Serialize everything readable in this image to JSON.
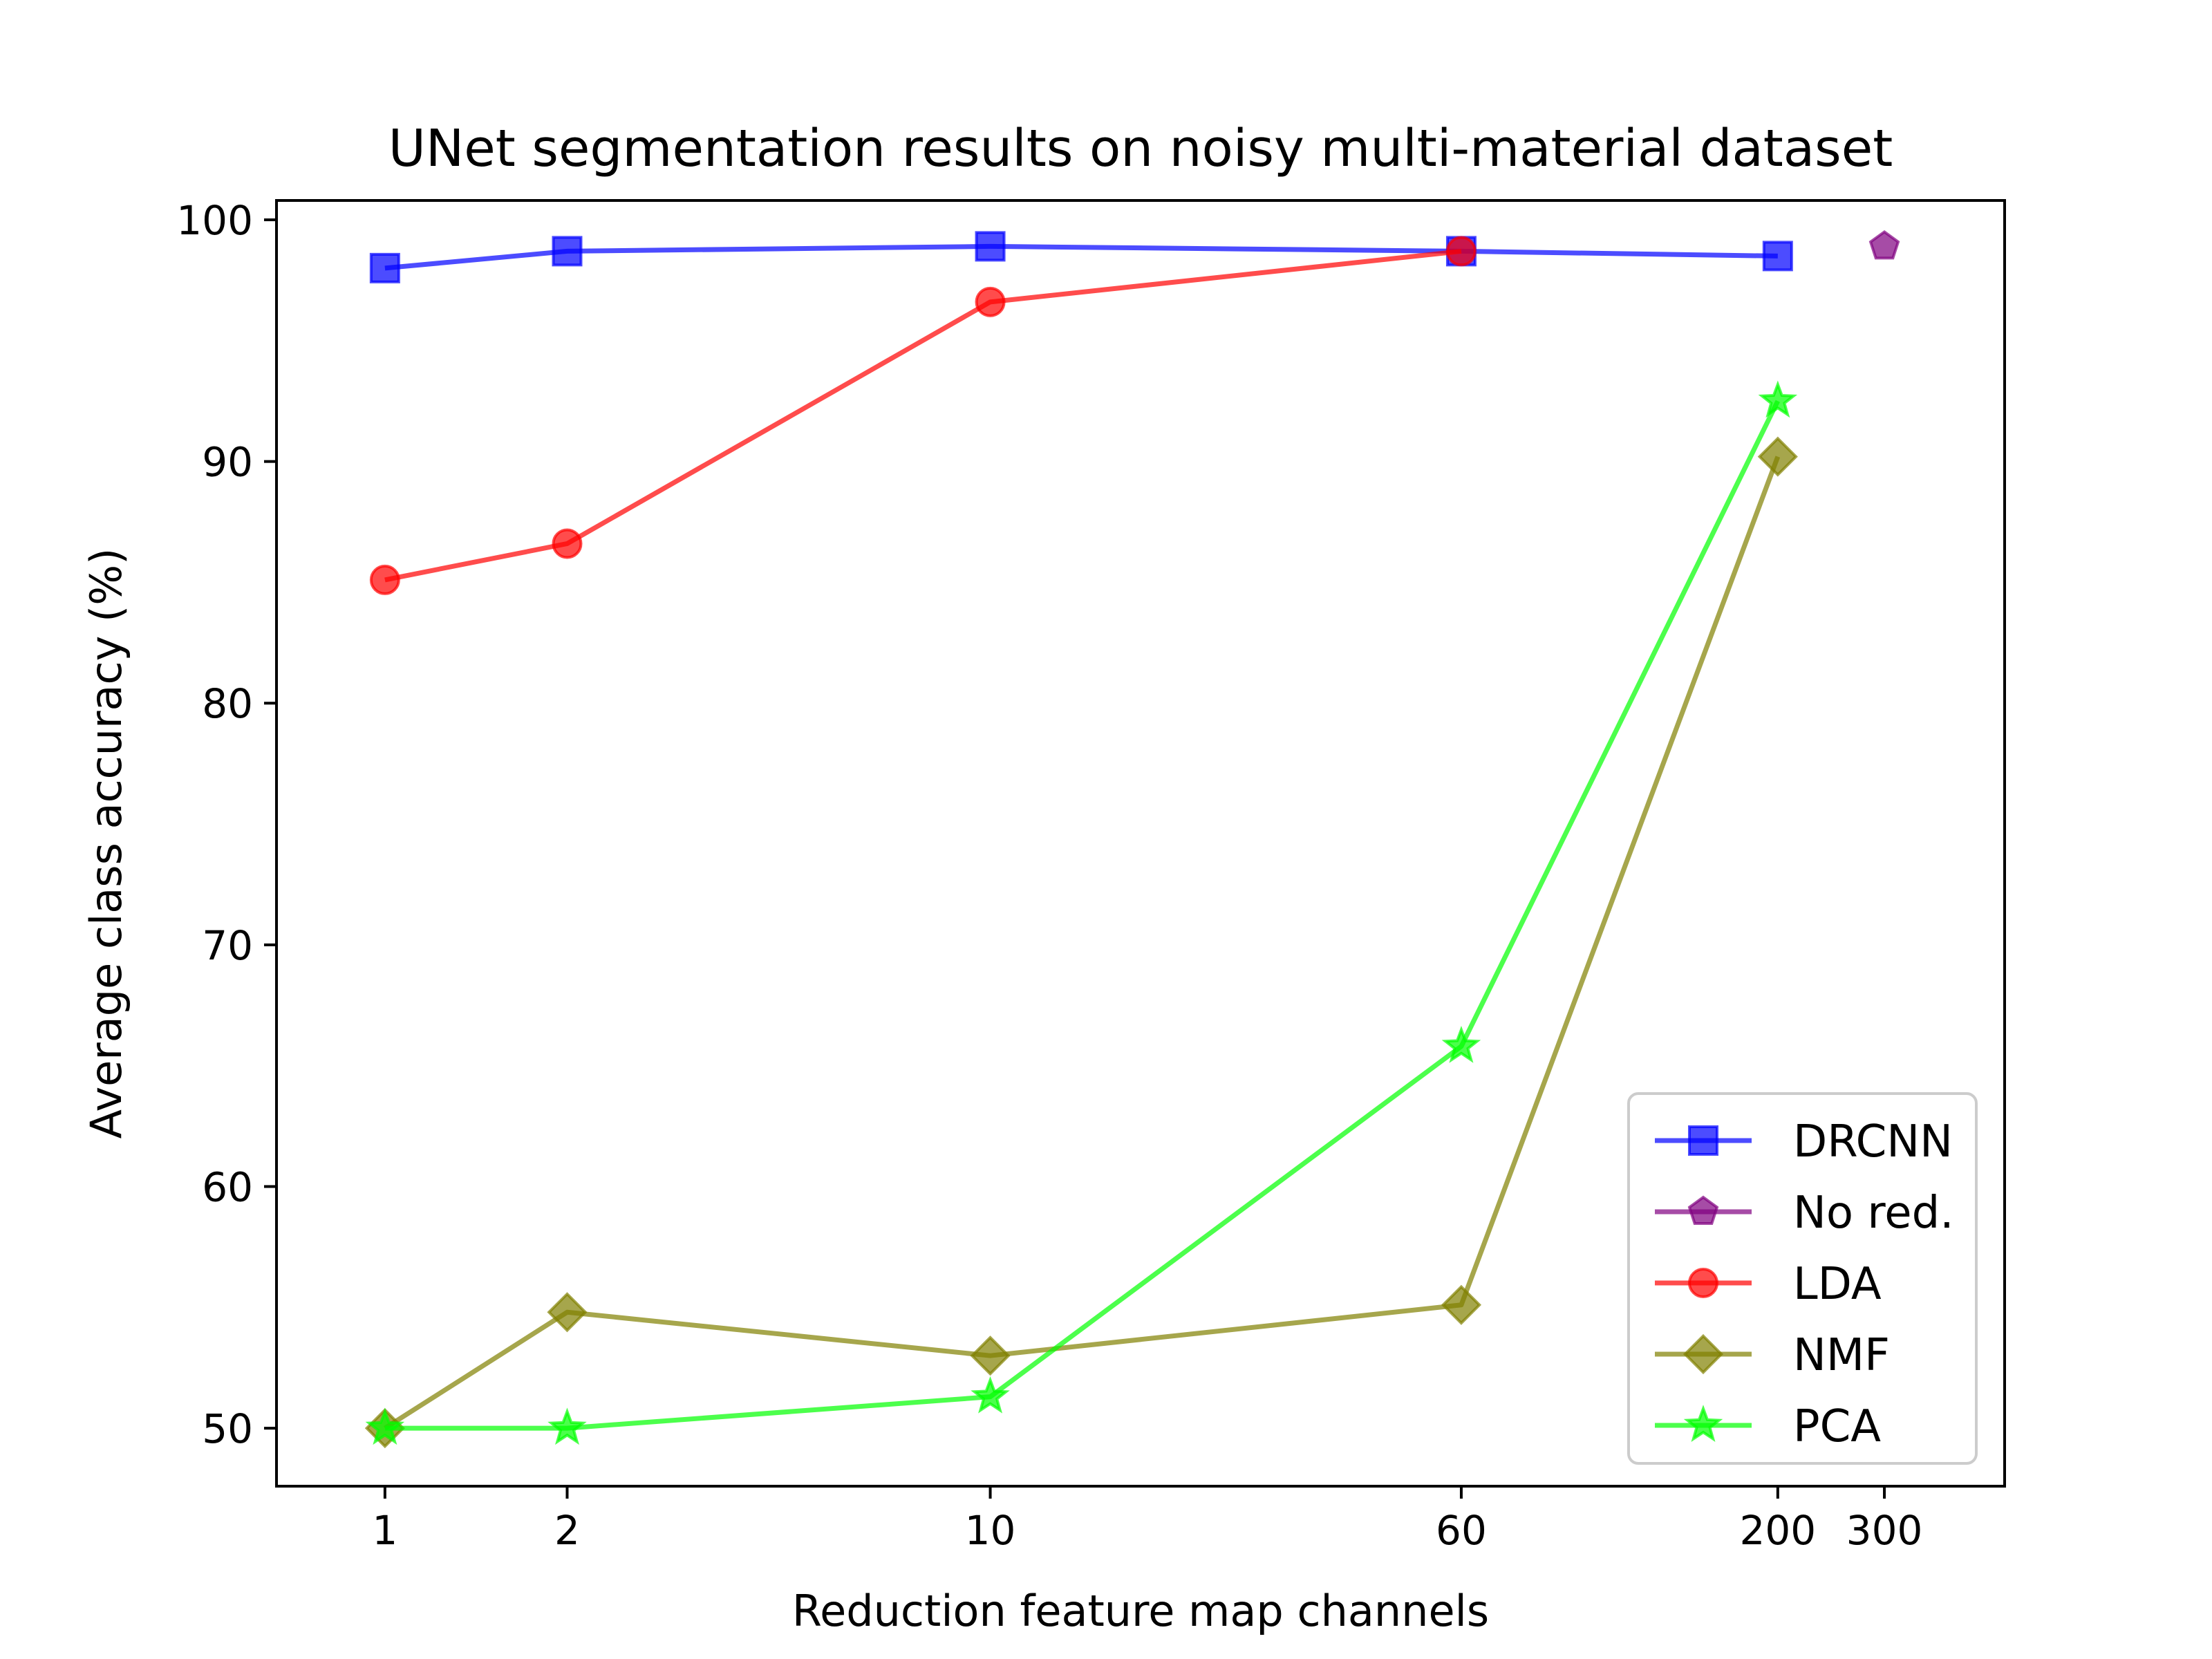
{
  "chart_data": {
    "type": "line",
    "title": "UNet segmentation results on noisy multi-material dataset",
    "xlabel": "Reduction feature map channels",
    "ylabel": "Average class accuracy (%)",
    "x_scale": "log",
    "x_ticks": [
      1,
      2,
      10,
      60,
      200,
      300
    ],
    "x_tick_labels": [
      "1",
      "2",
      "10",
      "60",
      "200",
      "300"
    ],
    "y_ticks": [
      50,
      60,
      70,
      80,
      90,
      100
    ],
    "y_tick_labels": [
      "50",
      "60",
      "70",
      "80",
      "90",
      "100"
    ],
    "ylim": [
      47.6,
      100.8
    ],
    "grid": false,
    "legend_position": "lower-right",
    "series": [
      {
        "name": "DRCNN",
        "color": "#0000ff",
        "marker": "square",
        "line": true,
        "x": [
          1,
          2,
          10,
          60,
          200
        ],
        "y": [
          98.0,
          98.7,
          98.9,
          98.7,
          98.5
        ]
      },
      {
        "name": "No red.",
        "color": "#800080",
        "marker": "pentagon",
        "line": false,
        "x": [
          300
        ],
        "y": [
          98.9
        ]
      },
      {
        "name": "LDA",
        "color": "#ff0000",
        "marker": "circle",
        "line": true,
        "x": [
          1,
          2,
          10,
          60
        ],
        "y": [
          85.1,
          86.6,
          96.6,
          98.7
        ]
      },
      {
        "name": "NMF",
        "color": "#808000",
        "marker": "diamond",
        "line": true,
        "x": [
          1,
          2,
          10,
          60,
          200
        ],
        "y": [
          50.0,
          54.8,
          53.0,
          55.1,
          90.2
        ]
      },
      {
        "name": "PCA",
        "color": "#00ff00",
        "marker": "star",
        "line": true,
        "x": [
          1,
          2,
          10,
          60,
          200
        ],
        "y": [
          50.0,
          50.0,
          51.3,
          65.8,
          92.5
        ]
      }
    ]
  }
}
